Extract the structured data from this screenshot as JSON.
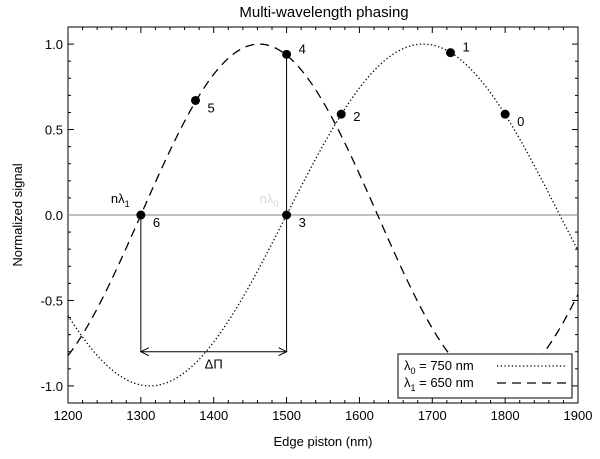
{
  "chart_data": {
    "type": "line",
    "title": "Multi-wavelength phasing",
    "xlabel": "Edge piston (nm)",
    "ylabel": "Normalized signal",
    "xlim": [
      1200,
      1900
    ],
    "ylim": [
      -1.1,
      1.1
    ],
    "x_ticks": [
      1200,
      1300,
      1400,
      1500,
      1600,
      1700,
      1800,
      1900
    ],
    "y_ticks": [
      -1.0,
      -0.5,
      0.0,
      0.5,
      1.0
    ],
    "x_tick_labels": [
      "1200",
      "1300",
      "1400",
      "1500",
      "1600",
      "1700",
      "1800",
      "1900"
    ],
    "y_tick_labels": [
      "-1.0",
      "-0.5",
      "0.0",
      "0.5",
      "1.0"
    ],
    "zero_line": true,
    "series": [
      {
        "name_prefix": "λ",
        "name_sub": "0",
        "name_suffix": " = 750 nm",
        "wavelength": 750,
        "style": "dotted",
        "color": "#000000"
      },
      {
        "name_prefix": "λ",
        "name_sub": "1",
        "name_suffix": " = 650 nm",
        "wavelength": 650,
        "style": "dashed",
        "color": "#000000"
      }
    ],
    "points": [
      {
        "label": "0",
        "x": 1800,
        "y": 0.59
      },
      {
        "label": "1",
        "x": 1725,
        "y": 0.95
      },
      {
        "label": "2",
        "x": 1575,
        "y": 0.59
      },
      {
        "label": "3",
        "x": 1500,
        "y": 0.0
      },
      {
        "label": "4",
        "x": 1500,
        "y": 0.94
      },
      {
        "label": "5",
        "x": 1375,
        "y": 0.67
      },
      {
        "label": "6",
        "x": 1300,
        "y": 0.0
      }
    ],
    "annotations": {
      "n_lambda1": {
        "main": "nλ",
        "sub": "1",
        "x": 1300,
        "y": 0.0
      },
      "n_lambda0": {
        "main": "nλ",
        "sub": "0",
        "x": 1500,
        "y": 0.0
      },
      "delta_pi": {
        "text": "ΔΠ",
        "x_from": 1300,
        "x_to": 1500,
        "y": -0.8
      }
    },
    "legend_position": "bottom-right",
    "grid": false
  }
}
